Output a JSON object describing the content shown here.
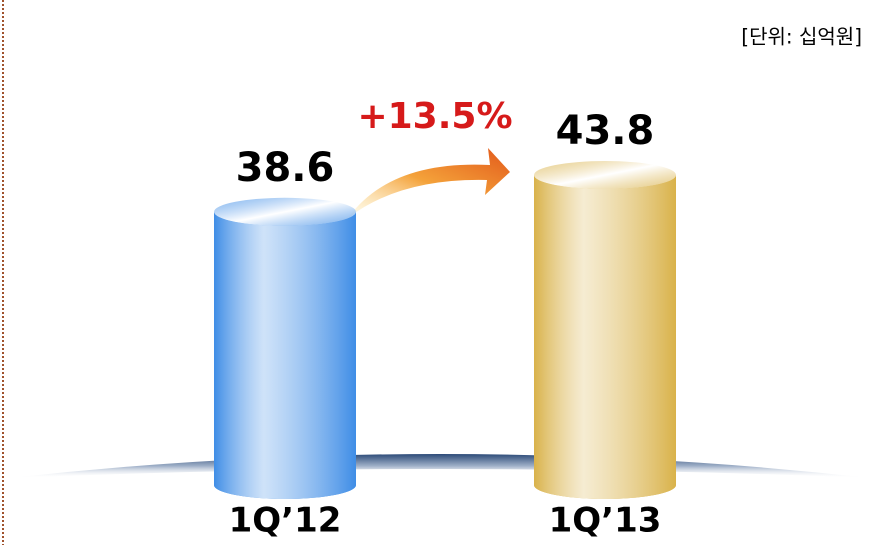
{
  "chart_data": {
    "type": "bar",
    "unit_label": "[단위: 십억원]",
    "annotation": "+13.5%",
    "categories": [
      "1Q’12",
      "1Q’13"
    ],
    "values": [
      38.6,
      43.8
    ],
    "colors": [
      "#3f8de6",
      "#d9b24a"
    ]
  }
}
